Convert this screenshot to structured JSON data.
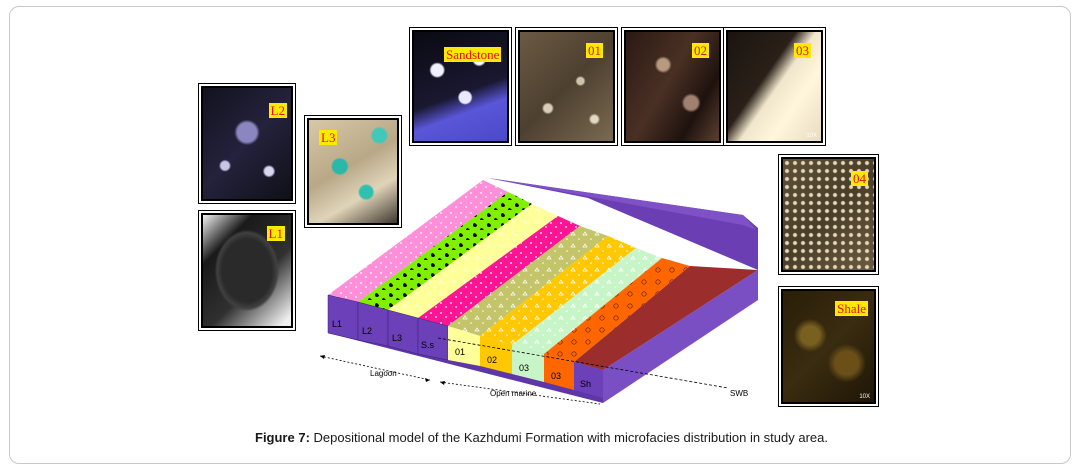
{
  "photos": [
    {
      "id": "sandstone",
      "label": "Sandstone",
      "icon": "thin-section-micrograph"
    },
    {
      "id": "o1",
      "label": "01",
      "icon": "thin-section-micrograph"
    },
    {
      "id": "o2",
      "label": "02",
      "icon": "thin-section-micrograph"
    },
    {
      "id": "o3",
      "label": "03",
      "icon": "thin-section-micrograph"
    },
    {
      "id": "l2",
      "label": "L2",
      "icon": "thin-section-micrograph"
    },
    {
      "id": "l3",
      "label": "L3",
      "icon": "thin-section-micrograph"
    },
    {
      "id": "l1",
      "label": "L1",
      "icon": "thin-section-micrograph"
    },
    {
      "id": "o4",
      "label": "04",
      "icon": "thin-section-micrograph"
    },
    {
      "id": "shale",
      "label": "Shale",
      "icon": "thin-section-micrograph"
    }
  ],
  "magnification": "10X",
  "model": {
    "front_labels": [
      "L1",
      "L2",
      "L3",
      "S.s",
      "01",
      "02",
      "03",
      "03",
      "Sh"
    ],
    "zones": [
      {
        "name": "Lagoon"
      },
      {
        "name": "Open marine"
      }
    ],
    "swb_label": "SWB",
    "colors": {
      "L1": "#ff8fd8",
      "L2": "#7ff000",
      "L3": "#ffff99",
      "Ss": "#ff1493",
      "O1": "#c4c46a",
      "O2": "#ffc800",
      "O3": "#c8f5c8",
      "O4": "#ff6600",
      "Sh": "#9b2d2d",
      "base": "#6b3eb4"
    }
  },
  "caption": {
    "prefix": "Figure 7:",
    "text": " Depositional model of the Kazhdumi Formation with microfacies distribution in study area."
  }
}
